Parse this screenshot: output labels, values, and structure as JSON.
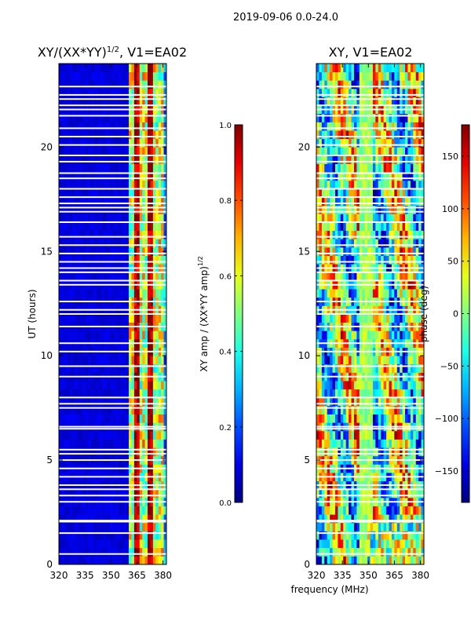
{
  "figure": {
    "suptitle": "2019-09-06 0.0-24.0",
    "xlabel": "frequency (MHz)"
  },
  "chart_data": [
    {
      "type": "heatmap",
      "title_base": "XY/(XX*YY)",
      "title_exp": "1/2",
      "title_tail": ", V1=EA02",
      "xlabel": "",
      "ylabel": "UT (hours)",
      "xlim": [
        320,
        382
      ],
      "ylim": [
        0,
        24
      ],
      "xticks": [
        "320",
        "335",
        "350",
        "365",
        "380"
      ],
      "xtick_values": [
        320,
        335,
        350,
        365,
        380
      ],
      "yticks": [
        "0",
        "5",
        "10",
        "15",
        "20"
      ],
      "ytick_values": [
        0,
        5,
        10,
        15,
        20
      ],
      "colorbar": {
        "label_base": "XY amp / (XX*YY amp)",
        "label_exp": "1/2",
        "ticks": [
          "0.0",
          "0.2",
          "0.4",
          "0.6",
          "0.8",
          "1.0"
        ],
        "tick_values": [
          0.0,
          0.2,
          0.4,
          0.6,
          0.8,
          1.0
        ],
        "range": [
          0,
          1
        ],
        "colormap": "jet"
      },
      "gaps_hours": [
        0.5,
        1.5,
        2.05,
        2.1,
        3.0,
        3.3,
        3.6,
        3.8,
        4.2,
        4.6,
        5.0,
        5.3,
        5.5,
        6.5,
        6.6,
        7.5,
        7.7,
        8.0,
        9.0,
        9.5,
        10.2,
        10.6,
        11.4,
        12.0,
        12.2,
        12.6,
        13.4,
        13.6,
        14.0,
        14.2,
        14.5,
        14.9,
        15.3,
        15.7,
        16.4,
        16.9,
        17.1,
        17.3,
        17.6,
        18.0,
        18.5,
        18.75,
        19.3,
        19.6,
        20.1,
        20.5,
        20.9,
        21.5,
        21.8,
        22.0,
        22.3,
        22.5,
        22.9
      ]
    },
    {
      "type": "heatmap",
      "title": "XY, V1=EA02",
      "xlabel": "",
      "ylabel": "",
      "xlim": [
        320,
        382
      ],
      "ylim": [
        0,
        24
      ],
      "xticks": [
        "320",
        "335",
        "350",
        "365",
        "380"
      ],
      "xtick_values": [
        320,
        335,
        350,
        365,
        380
      ],
      "yticks": [
        "0",
        "5",
        "10",
        "15",
        "20"
      ],
      "ytick_values": [
        0,
        5,
        10,
        15,
        20
      ],
      "colorbar": {
        "label": "phase (deg)",
        "ticks": [
          "−150",
          "−100",
          "−50",
          "0",
          "50",
          "100",
          "150"
        ],
        "tick_values": [
          -150,
          -100,
          -50,
          0,
          50,
          100,
          150
        ],
        "range": [
          -180,
          180
        ],
        "colormap": "jet"
      },
      "gaps_hours": [
        0.5,
        1.5,
        2.05,
        2.1,
        3.0,
        3.3,
        3.6,
        3.8,
        4.2,
        4.6,
        5.0,
        5.3,
        5.5,
        6.5,
        6.6,
        7.5,
        7.7,
        8.0,
        9.0,
        9.5,
        10.2,
        10.6,
        11.4,
        12.0,
        12.2,
        12.6,
        13.4,
        13.6,
        14.0,
        14.2,
        14.5,
        14.9,
        15.3,
        15.7,
        16.4,
        16.9,
        17.1,
        17.3,
        17.6,
        18.0,
        18.5,
        18.75,
        19.3,
        19.6,
        20.1,
        20.5,
        20.9,
        21.5,
        21.8,
        22.0,
        22.3,
        22.5,
        22.9
      ]
    }
  ]
}
